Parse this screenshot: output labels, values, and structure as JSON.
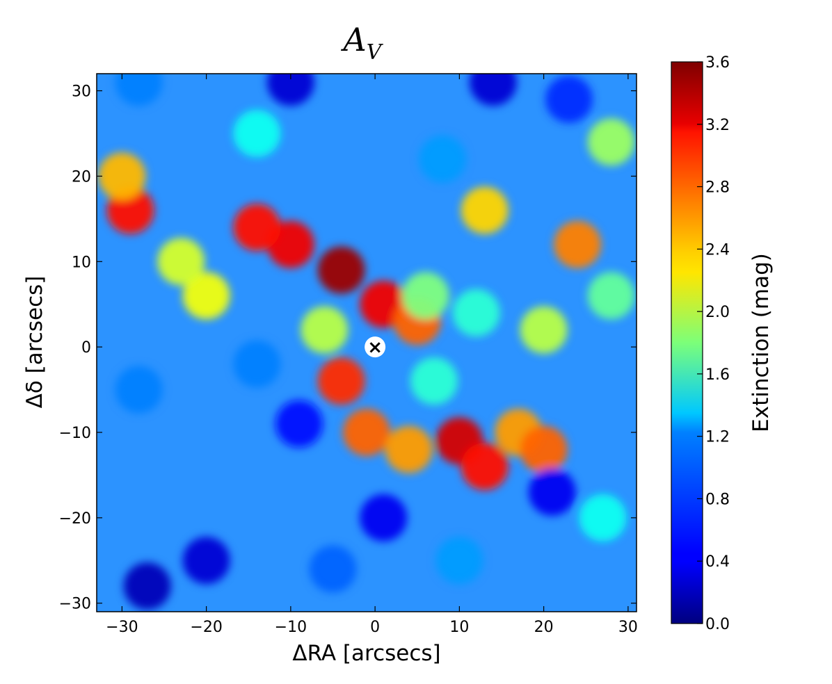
{
  "chart_data": {
    "type": "heatmap",
    "title": "A",
    "title_subscript": "V",
    "xlabel": "ΔRA [arcsecs]",
    "ylabel": "Δδ [arcsecs]",
    "xlim": [
      -33,
      31
    ],
    "ylim": [
      -31,
      32
    ],
    "x_ticks": [
      -30,
      -20,
      -10,
      0,
      10,
      20,
      30
    ],
    "x_tick_labels": [
      "−30",
      "−20",
      "−10",
      "0",
      "10",
      "20",
      "30"
    ],
    "y_ticks": [
      30,
      20,
      10,
      0,
      -10,
      -20,
      -30
    ],
    "y_tick_labels": [
      "30",
      "20",
      "10",
      "0",
      "−10",
      "−20",
      "−30"
    ],
    "colorbar": {
      "label": "Extinction (mag)",
      "range": [
        0.0,
        3.6
      ],
      "ticks": [
        0.0,
        0.4,
        0.8,
        1.2,
        1.6,
        2.0,
        2.4,
        2.8,
        3.2,
        3.6
      ],
      "tick_labels": [
        "0.0",
        "0.4",
        "0.8",
        "1.2",
        "1.6",
        "2.0",
        "2.4",
        "2.8",
        "3.2",
        "3.6"
      ],
      "colormap": "jet"
    },
    "grid": false,
    "marker": {
      "symbol": "×",
      "x": 0,
      "y": 0,
      "label": ""
    },
    "features": [
      {
        "x": -4,
        "y": 9,
        "value": 3.5
      },
      {
        "x": -10,
        "y": 12,
        "value": 3.2
      },
      {
        "x": -14,
        "y": 14,
        "value": 3.1
      },
      {
        "x": 1,
        "y": 5,
        "value": 3.2
      },
      {
        "x": 5,
        "y": 3,
        "value": 2.8
      },
      {
        "x": 10,
        "y": -11,
        "value": 3.3
      },
      {
        "x": 13,
        "y": -14,
        "value": 3.1
      },
      {
        "x": 17,
        "y": -10,
        "value": 2.6
      },
      {
        "x": 20,
        "y": -12,
        "value": 2.8
      },
      {
        "x": -4,
        "y": -4,
        "value": 3.0
      },
      {
        "x": -1,
        "y": -10,
        "value": 2.8
      },
      {
        "x": 4,
        "y": -12,
        "value": 2.6
      },
      {
        "x": -29,
        "y": 16,
        "value": 3.1
      },
      {
        "x": -30,
        "y": 20,
        "value": 2.5
      },
      {
        "x": 13,
        "y": 16,
        "value": 2.4
      },
      {
        "x": 24,
        "y": 12,
        "value": 2.7
      },
      {
        "x": 20,
        "y": 2,
        "value": 2.0
      },
      {
        "x": -20,
        "y": 6,
        "value": 2.2
      },
      {
        "x": -23,
        "y": 10,
        "value": 2.1
      },
      {
        "x": -6,
        "y": 2,
        "value": 2.0
      },
      {
        "x": 6,
        "y": 6,
        "value": 1.8
      },
      {
        "x": -14,
        "y": 25,
        "value": 1.4
      },
      {
        "x": -9,
        "y": -9,
        "value": 0.5
      },
      {
        "x": -14,
        "y": -2,
        "value": 0.9
      },
      {
        "x": -27,
        "y": -28,
        "value": 0.2
      },
      {
        "x": -20,
        "y": -25,
        "value": 0.3
      },
      {
        "x": -10,
        "y": 31,
        "value": 0.3
      },
      {
        "x": -28,
        "y": 31,
        "value": 0.9
      },
      {
        "x": 14,
        "y": 31,
        "value": 0.3
      },
      {
        "x": 23,
        "y": 29,
        "value": 0.6
      },
      {
        "x": 1,
        "y": -20,
        "value": 0.4
      },
      {
        "x": 21,
        "y": -17,
        "value": 0.4
      },
      {
        "x": -28,
        "y": -5,
        "value": 0.9
      },
      {
        "x": 28,
        "y": 24,
        "value": 1.9
      },
      {
        "x": 28,
        "y": 6,
        "value": 1.7
      },
      {
        "x": 27,
        "y": -20,
        "value": 1.4
      },
      {
        "x": 10,
        "y": -25,
        "value": 1.0
      },
      {
        "x": -5,
        "y": -26,
        "value": 0.8
      },
      {
        "x": 8,
        "y": 22,
        "value": 1.0
      },
      {
        "x": 12,
        "y": 4,
        "value": 1.5
      },
      {
        "x": 7,
        "y": -4,
        "value": 1.5
      }
    ]
  }
}
